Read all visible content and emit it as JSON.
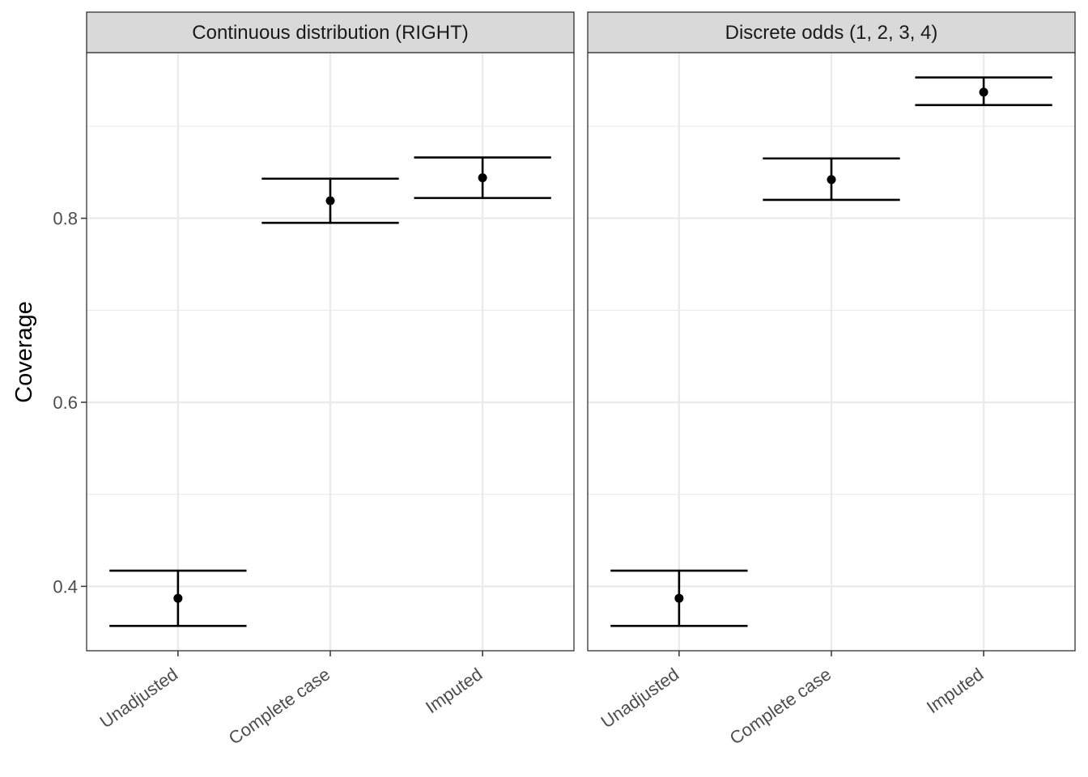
{
  "chart_data": {
    "type": "errorbar",
    "ylabel": "Coverage",
    "xlabel": "",
    "ylim": [
      0.33,
      0.98
    ],
    "yticks": [
      0.4,
      0.6,
      0.8
    ],
    "yminor": [
      0.5,
      0.7,
      0.9
    ],
    "grid": true,
    "categories": [
      "Unadjusted",
      "Complete case",
      "Imputed"
    ],
    "panels": [
      {
        "title": "Continuous distribution (RIGHT)",
        "points": [
          {
            "category": "Unadjusted",
            "y": 0.387,
            "lower": 0.357,
            "upper": 0.417
          },
          {
            "category": "Complete case",
            "y": 0.819,
            "lower": 0.795,
            "upper": 0.843
          },
          {
            "category": "Imputed",
            "y": 0.844,
            "lower": 0.822,
            "upper": 0.866
          }
        ]
      },
      {
        "title": "Discrete odds (1, 2, 3, 4)",
        "points": [
          {
            "category": "Unadjusted",
            "y": 0.387,
            "lower": 0.357,
            "upper": 0.417
          },
          {
            "category": "Complete case",
            "y": 0.842,
            "lower": 0.82,
            "upper": 0.865
          },
          {
            "category": "Imputed",
            "y": 0.937,
            "lower": 0.923,
            "upper": 0.953
          }
        ]
      }
    ]
  }
}
